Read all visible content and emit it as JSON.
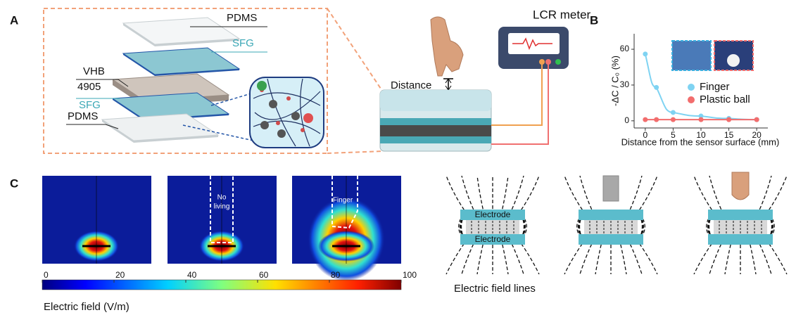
{
  "panels": {
    "a": "A",
    "b": "B",
    "c": "C"
  },
  "panel_a": {
    "layers": [
      "PDMS",
      "SFG",
      "VHB",
      "4905",
      "SFG",
      "PDMS"
    ],
    "distance": "Distance",
    "meter": "LCR meter"
  },
  "chart_data": {
    "type": "line",
    "x": [
      0,
      2,
      5,
      10,
      15,
      20
    ],
    "series": [
      {
        "name": "Finger",
        "color": "#7fd3f2",
        "values": [
          56,
          28,
          7,
          4,
          2,
          1
        ]
      },
      {
        "name": "Plastic ball",
        "color": "#f26d6d",
        "values": [
          1,
          1,
          1,
          1,
          1,
          1
        ]
      }
    ],
    "xlabel": "Distance from the sensor surface (mm)",
    "ylabel": "-ΔC / C₀ (%)",
    "xlim": [
      -2,
      22
    ],
    "xticks": [
      0,
      5,
      10,
      15,
      20
    ],
    "ylim": [
      -6,
      73
    ],
    "yticks": [
      0,
      30,
      60
    ],
    "legend": "right"
  },
  "panel_c": {
    "no_living": [
      "No",
      "living"
    ],
    "finger": "Finger",
    "colorbar": {
      "lim": [
        0,
        100
      ],
      "ticks": [
        0,
        20,
        40,
        60,
        80,
        100
      ],
      "label": "Electric field (V/m)"
    },
    "electrodes": [
      "Electrode",
      "Electrode"
    ],
    "field_lines": "Electric field lines"
  }
}
